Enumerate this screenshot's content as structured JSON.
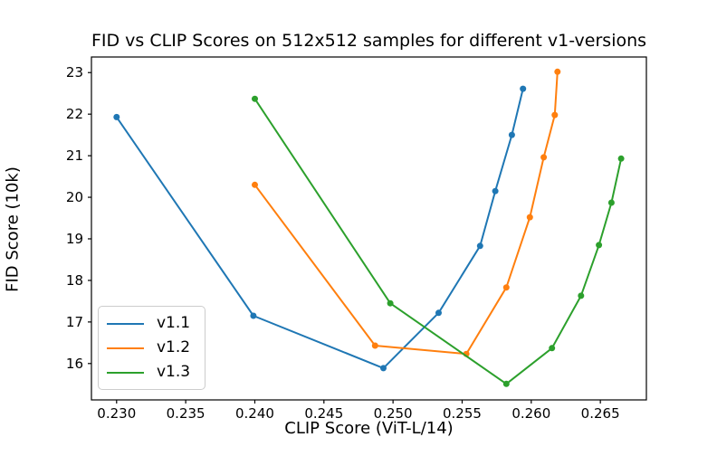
{
  "chart_data": {
    "type": "line",
    "title": "FID vs CLIP Scores on 512x512 samples for different v1-versions",
    "xlabel": "CLIP Score (ViT-L/14)",
    "ylabel": "FID Score (10k)",
    "xlim": [
      0.22818,
      0.26833
    ],
    "ylim": [
      15.125,
      23.375
    ],
    "xticks": [
      0.23,
      0.235,
      0.24,
      0.245,
      0.25,
      0.255,
      0.26,
      0.265
    ],
    "xtick_labels": [
      "0.230",
      "0.235",
      "0.240",
      "0.245",
      "0.250",
      "0.255",
      "0.260",
      "0.265"
    ],
    "yticks": [
      16,
      17,
      18,
      19,
      20,
      21,
      22,
      23
    ],
    "ytick_labels": [
      "16",
      "17",
      "18",
      "19",
      "20",
      "21",
      "22",
      "23"
    ],
    "grid": false,
    "marker": "o",
    "legend_position": "lower left",
    "series": [
      {
        "name": "v1.1",
        "color": "#1f77b4",
        "points": [
          [
            0.23,
            21.93
          ],
          [
            0.2399,
            17.15
          ],
          [
            0.2493,
            15.89
          ],
          [
            0.2533,
            17.22
          ],
          [
            0.2563,
            18.83
          ],
          [
            0.2574,
            20.15
          ],
          [
            0.2586,
            21.5
          ],
          [
            0.2594,
            22.61
          ]
        ]
      },
      {
        "name": "v1.2",
        "color": "#ff7f0e",
        "points": [
          [
            0.24,
            20.3
          ],
          [
            0.2487,
            16.43
          ],
          [
            0.2553,
            16.23
          ],
          [
            0.2582,
            17.83
          ],
          [
            0.2599,
            19.52
          ],
          [
            0.2609,
            20.96
          ],
          [
            0.2617,
            21.98
          ],
          [
            0.2619,
            23.02
          ]
        ]
      },
      {
        "name": "v1.3",
        "color": "#2ca02c",
        "points": [
          [
            0.24,
            22.37
          ],
          [
            0.2498,
            17.45
          ],
          [
            0.2582,
            15.51
          ],
          [
            0.2615,
            16.37
          ],
          [
            0.2636,
            17.63
          ],
          [
            0.2649,
            18.85
          ],
          [
            0.2658,
            19.87
          ],
          [
            0.2665,
            20.93
          ]
        ]
      }
    ]
  }
}
